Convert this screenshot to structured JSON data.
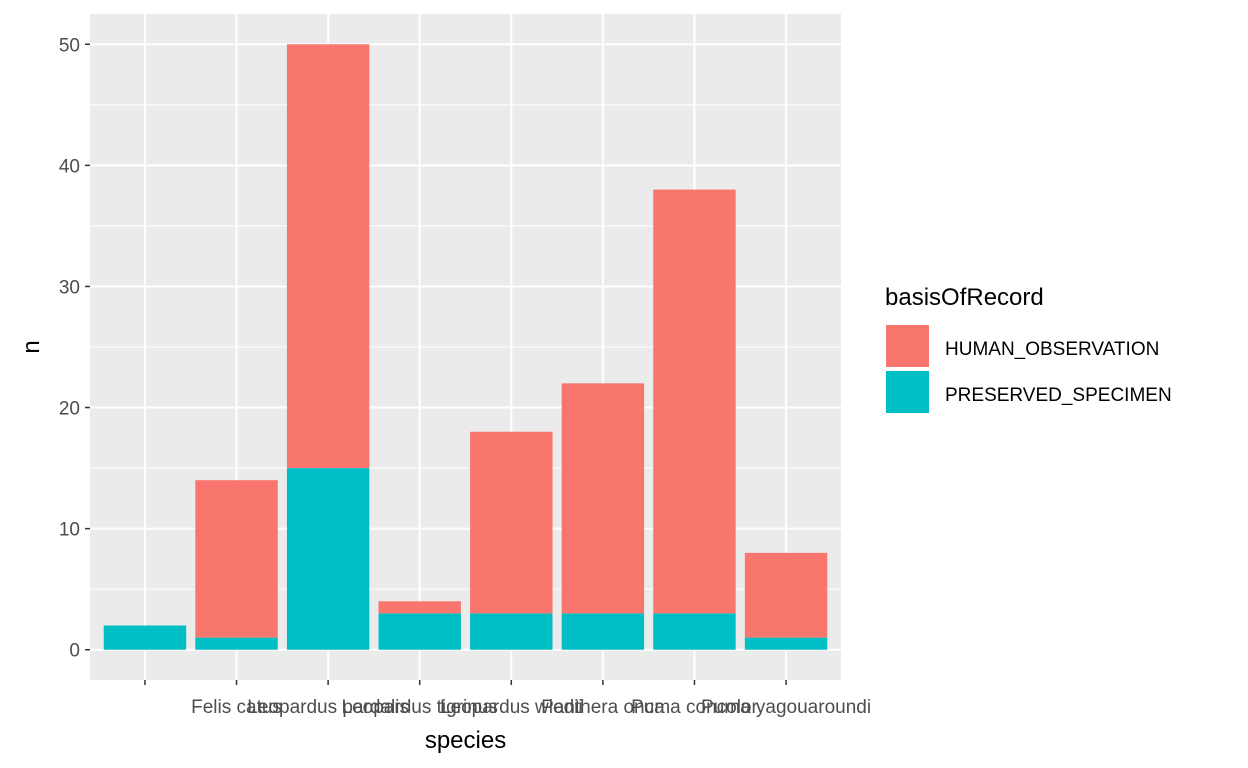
{
  "chart_data": {
    "type": "bar",
    "stacked": true,
    "title": "",
    "xlabel": "species",
    "ylabel": "n",
    "categories": [
      "",
      "Felis catus",
      "Leopardus pardalis",
      "Leopardus tigrinus",
      "Leopardus wiedii",
      "Panthera onca",
      "Puma concolor",
      "Puma yagouaroundi"
    ],
    "series": [
      {
        "name": "PRESERVED_SPECIMEN",
        "color": "#00BFC4",
        "values": [
          2,
          1,
          15,
          3,
          3,
          3,
          3,
          1
        ]
      },
      {
        "name": "HUMAN_OBSERVATION",
        "color": "#F8766D",
        "values": [
          0,
          13,
          35,
          1,
          15,
          19,
          35,
          7
        ]
      }
    ],
    "ylim": [
      -2.5,
      52.5
    ],
    "yticks": [
      0,
      10,
      20,
      30,
      40,
      50
    ],
    "grid": true,
    "legend": {
      "title": "basisOfRecord",
      "position": "right",
      "entries": [
        {
          "label": "HUMAN_OBSERVATION",
          "color": "#F8766D"
        },
        {
          "label": "PRESERVED_SPECIMEN",
          "color": "#00BFC4"
        }
      ]
    }
  }
}
